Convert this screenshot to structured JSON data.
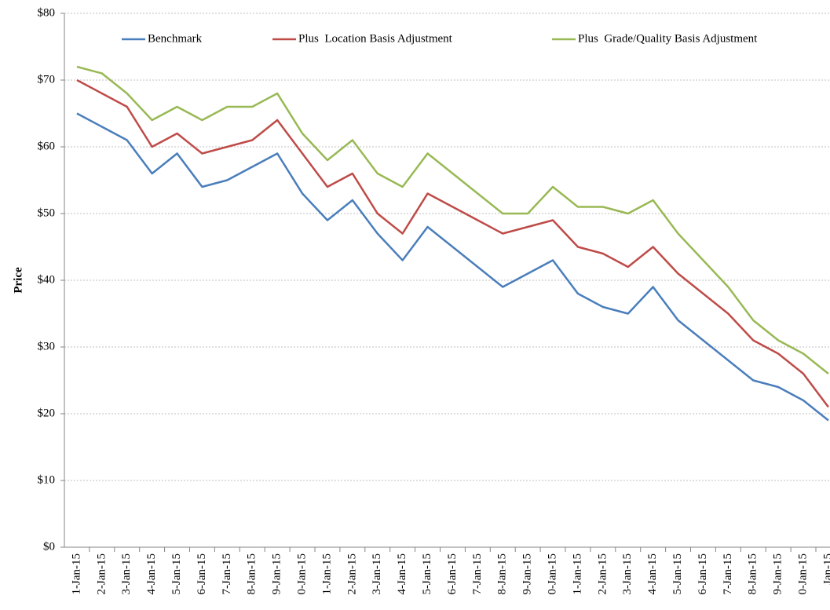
{
  "chart_data": {
    "type": "line",
    "y_label": "Price",
    "categories": [
      "1-Jan-15",
      "2-Jan-15",
      "3-Jan-15",
      "4-Jan-15",
      "5-Jan-15",
      "6-Jan-15",
      "7-Jan-15",
      "8-Jan-15",
      "9-Jan-15",
      "0-Jan-15",
      "1-Jan-15",
      "2-Jan-15",
      "3-Jan-15",
      "4-Jan-15",
      "5-Jan-15",
      "6-Jan-15",
      "7-Jan-15",
      "8-Jan-15",
      "9-Jan-15",
      "0-Jan-15",
      "1-Jan-15",
      "2-Jan-15",
      "3-Jan-15",
      "4-Jan-15",
      "5-Jan-15",
      "6-Jan-15",
      "7-Jan-15",
      "8-Jan-15",
      "9-Jan-15",
      "0-Jan-15",
      "Jan-15"
    ],
    "series": [
      {
        "name": "Benchmark",
        "color": "#4a7ebb",
        "values": [
          65,
          63,
          61,
          56,
          59,
          54,
          55,
          57,
          59,
          53,
          49,
          52,
          47,
          43,
          48,
          45,
          42,
          39,
          41,
          43,
          38,
          36,
          35,
          39,
          34,
          31,
          28,
          25,
          24,
          22,
          19
        ]
      },
      {
        "name": "Plus  Location Basis Adjustment",
        "color": "#be4b48",
        "values": [
          70,
          68,
          66,
          60,
          62,
          59,
          60,
          61,
          64,
          59,
          54,
          56,
          50,
          47,
          53,
          51,
          49,
          47,
          48,
          49,
          45,
          44,
          42,
          45,
          41,
          38,
          35,
          31,
          29,
          26,
          21
        ]
      },
      {
        "name": "Plus  Grade/Quality Basis Adjustment",
        "color": "#98b954",
        "values": [
          72,
          71,
          68,
          64,
          66,
          64,
          66,
          66,
          68,
          62,
          58,
          61,
          56,
          54,
          59,
          56,
          53,
          50,
          50,
          54,
          51,
          51,
          50,
          52,
          47,
          43,
          39,
          34,
          31,
          29,
          26
        ]
      }
    ],
    "ylim": [
      0,
      80
    ],
    "yticks": [
      {
        "value": 0,
        "label": "$0"
      },
      {
        "value": 10,
        "label": "$10"
      },
      {
        "value": 20,
        "label": "$20"
      },
      {
        "value": 30,
        "label": "$30"
      },
      {
        "value": 40,
        "label": "$40"
      },
      {
        "value": 50,
        "label": "$50"
      },
      {
        "value": 60,
        "label": "$60"
      },
      {
        "value": 70,
        "label": "$70"
      },
      {
        "value": 80,
        "label": "$80"
      }
    ],
    "grid": true,
    "legend": "top"
  }
}
